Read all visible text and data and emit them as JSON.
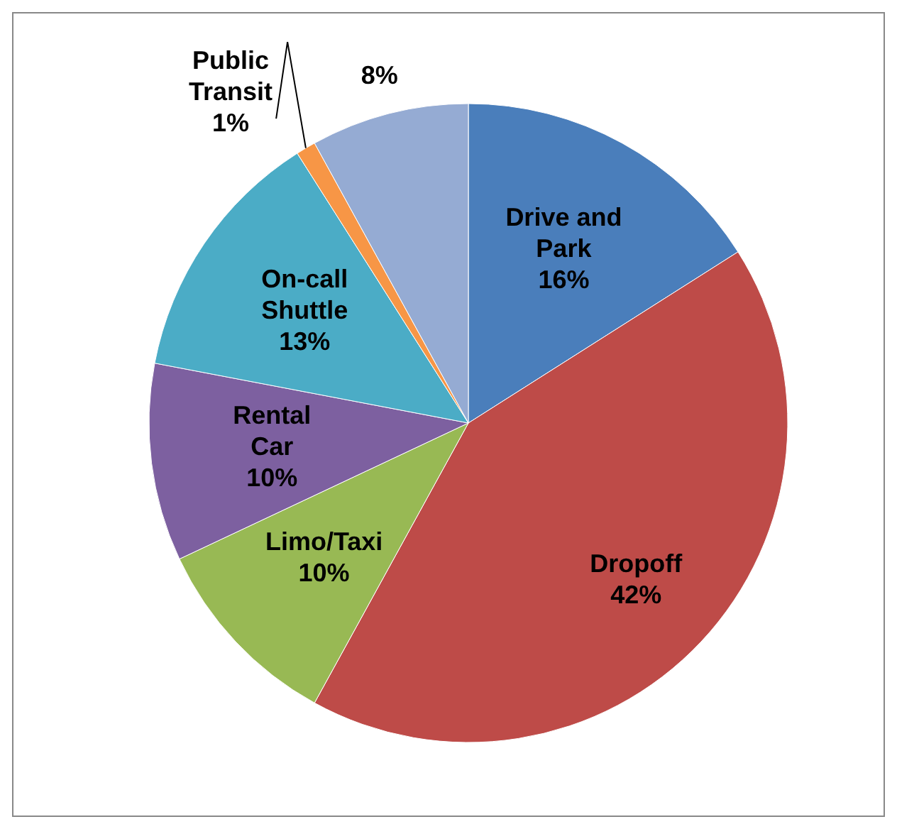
{
  "chart_data": {
    "type": "pie",
    "categories": [
      "Drive and Park",
      "Dropoff",
      "Limo/Taxi",
      "Rental Car",
      "On-call Shuttle",
      "Public Transit",
      null
    ],
    "values": [
      16,
      42,
      10,
      10,
      13,
      1,
      8
    ],
    "colors": [
      "#4a7ebb",
      "#be4b48",
      "#98b954",
      "#7d60a0",
      "#4bacc6",
      "#f79646",
      "#95abd3"
    ],
    "value_labels": [
      "16%",
      "42%",
      "10%",
      "10%",
      "13%",
      "1%",
      "8%"
    ],
    "legend": false
  }
}
